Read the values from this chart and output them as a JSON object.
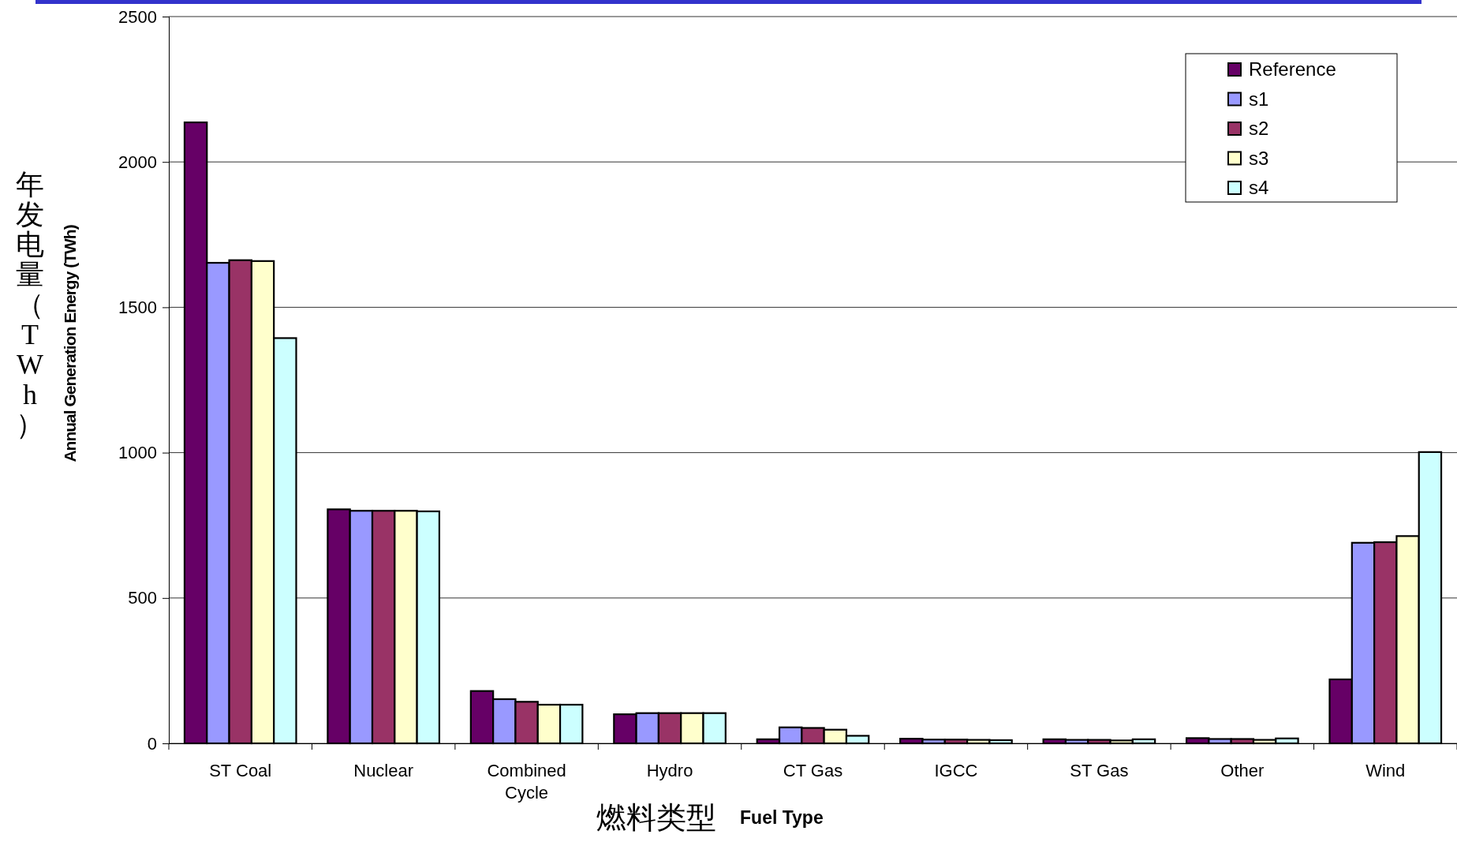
{
  "chart_data": {
    "type": "bar",
    "xlabel": "燃料类型\nFuel Type",
    "ylabel": "年发电量（TWh）\nAnnual Generation Energy (TWh)",
    "categories": [
      "ST Coal",
      "Nuclear",
      "Combined Cycle",
      "Hydro",
      "CT Gas",
      "IGCC",
      "ST Gas",
      "Other",
      "Wind"
    ],
    "series": [
      {
        "name": "Reference",
        "color": "#660066",
        "values": [
          2136,
          805,
          180,
          100,
          14,
          16,
          14,
          18,
          220
        ]
      },
      {
        "name": "s1",
        "color": "#9999ff",
        "values": [
          1653,
          800,
          152,
          104,
          55,
          13,
          12,
          15,
          690
        ]
      },
      {
        "name": "s2",
        "color": "#993366",
        "values": [
          1662,
          800,
          143,
          104,
          53,
          13,
          12,
          15,
          692
        ]
      },
      {
        "name": "s3",
        "color": "#ffffcc",
        "values": [
          1659,
          800,
          133,
          104,
          47,
          12,
          10,
          12,
          713
        ]
      },
      {
        "name": "s4",
        "color": "#ccffff",
        "values": [
          1394,
          798,
          133,
          104,
          26,
          11,
          14,
          17,
          1002
        ]
      }
    ],
    "ylim": [
      0,
      2500
    ],
    "yticks": [
      0,
      500,
      1000,
      1500,
      2000,
      2500
    ],
    "grid": "y",
    "legend": "top right"
  }
}
